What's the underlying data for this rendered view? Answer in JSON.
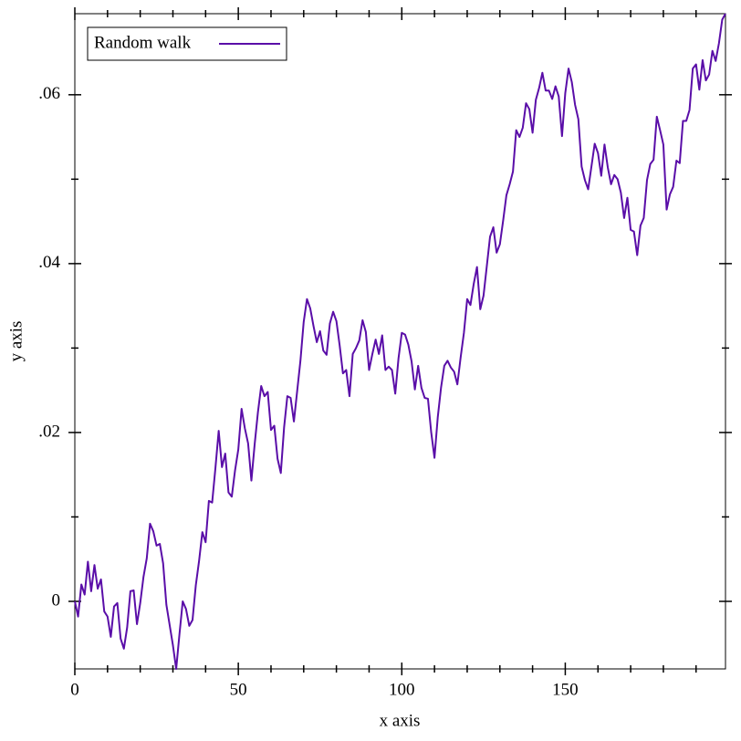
{
  "chart_data": {
    "type": "line",
    "xlabel": "x axis",
    "ylabel": "y axis",
    "legend": "top-left",
    "xlim": [
      0,
      199
    ],
    "ylim": [
      -0.008,
      0.0696
    ],
    "xticks": [
      0,
      50,
      100,
      150
    ],
    "xminorticks": [
      10,
      20,
      30,
      40,
      60,
      70,
      80,
      90,
      110,
      120,
      130,
      140,
      160,
      170,
      180,
      190
    ],
    "yticks": [
      0,
      {
        "value": 0.02,
        "label": ".02"
      },
      {
        "value": 0.04,
        "label": ".04"
      },
      {
        "value": 0.06,
        "label": ".06"
      }
    ],
    "yminorticks": [
      0.01,
      0.03,
      0.05
    ],
    "x": [
      0,
      1,
      2,
      3,
      4,
      5,
      6,
      7,
      8,
      9,
      10,
      11,
      12,
      13,
      14,
      15,
      16,
      17,
      18,
      19,
      20,
      21,
      22,
      23,
      24,
      25,
      26,
      27,
      28,
      29,
      30,
      31,
      32,
      33,
      34,
      35,
      36,
      37,
      38,
      39,
      40,
      41,
      42,
      43,
      44,
      45,
      46,
      47,
      48,
      49,
      50,
      51,
      52,
      53,
      54,
      55,
      56,
      57,
      58,
      59,
      60,
      61,
      62,
      63,
      64,
      65,
      66,
      67,
      68,
      69,
      70,
      71,
      72,
      73,
      74,
      75,
      76,
      77,
      78,
      79,
      80,
      81,
      82,
      83,
      84,
      85,
      86,
      87,
      88,
      89,
      90,
      91,
      92,
      93,
      94,
      95,
      96,
      97,
      98,
      99,
      100,
      101,
      102,
      103,
      104,
      105,
      106,
      107,
      108,
      109,
      110,
      111,
      112,
      113,
      114,
      115,
      116,
      117,
      118,
      119,
      120,
      121,
      122,
      123,
      124,
      125,
      126,
      127,
      128,
      129,
      130,
      131,
      132,
      133,
      134,
      135,
      136,
      137,
      138,
      139,
      140,
      141,
      142,
      143,
      144,
      145,
      146,
      147,
      148,
      149,
      150,
      151,
      152,
      153,
      154,
      155,
      156,
      157,
      158,
      159,
      160,
      161,
      162,
      163,
      164,
      165,
      166,
      167,
      168,
      169,
      170,
      171,
      172,
      173,
      174,
      175,
      176,
      177,
      178,
      179,
      180,
      181,
      182,
      183,
      184,
      185,
      186,
      187,
      188,
      189,
      190,
      191,
      192,
      193,
      194,
      195,
      196,
      197,
      198,
      199
    ],
    "series": [
      {
        "name": "Random walk",
        "color": "#5a0ea8",
        "values": [
          0,
          -0.0018,
          0.002,
          0.0008,
          0.0047,
          0.0012,
          0.0043,
          0.0015,
          0.0026,
          -0.0012,
          -0.0018,
          -0.0042,
          -0.0006,
          -0.0002,
          -0.0044,
          -0.0056,
          -0.0031,
          0.0012,
          0.0013,
          -0.0027,
          -0.0002,
          0.0029,
          0.0051,
          0.0092,
          0.0083,
          0.0066,
          0.0068,
          0.0045,
          -0.0004,
          -0.0028,
          -0.0052,
          -0.008,
          -0.0039,
          0,
          -0.0009,
          -0.0029,
          -0.0022,
          0.0019,
          0.0048,
          0.0082,
          0.007,
          0.0119,
          0.0117,
          0.0158,
          0.0202,
          0.0159,
          0.0175,
          0.0129,
          0.0124,
          0.0155,
          0.018,
          0.0228,
          0.0205,
          0.0187,
          0.0143,
          0.0186,
          0.0224,
          0.0255,
          0.0243,
          0.0248,
          0.0203,
          0.0208,
          0.0169,
          0.0152,
          0.0206,
          0.0243,
          0.0241,
          0.0213,
          0.0249,
          0.0285,
          0.0331,
          0.0358,
          0.0347,
          0.0326,
          0.0307,
          0.032,
          0.0297,
          0.0292,
          0.0329,
          0.0343,
          0.0332,
          0.0303,
          0.027,
          0.0274,
          0.0243,
          0.0293,
          0.03,
          0.0309,
          0.0333,
          0.0319,
          0.0274,
          0.0293,
          0.031,
          0.0293,
          0.0315,
          0.0274,
          0.0278,
          0.0274,
          0.0246,
          0.0288,
          0.0318,
          0.0316,
          0.0304,
          0.0284,
          0.0251,
          0.0279,
          0.0253,
          0.0241,
          0.024,
          0.02,
          0.017,
          0.0218,
          0.0253,
          0.0279,
          0.0285,
          0.0277,
          0.0272,
          0.0257,
          0.0289,
          0.0318,
          0.0358,
          0.0351,
          0.0376,
          0.0396,
          0.0346,
          0.0362,
          0.0397,
          0.0432,
          0.0443,
          0.0413,
          0.0423,
          0.0451,
          0.0481,
          0.0494,
          0.0509,
          0.0558,
          0.055,
          0.0561,
          0.059,
          0.0583,
          0.0555,
          0.0594,
          0.0608,
          0.0626,
          0.0605,
          0.0605,
          0.0595,
          0.061,
          0.0598,
          0.0551,
          0.0602,
          0.0631,
          0.0615,
          0.0588,
          0.0571,
          0.0515,
          0.0499,
          0.0488,
          0.0515,
          0.0542,
          0.0531,
          0.0504,
          0.0541,
          0.0514,
          0.0494,
          0.0505,
          0.05,
          0.0484,
          0.0454,
          0.0478,
          0.044,
          0.0438,
          0.041,
          0.0445,
          0.0454,
          0.0499,
          0.0518,
          0.0523,
          0.0574,
          0.0558,
          0.0541,
          0.0464,
          0.0482,
          0.0491,
          0.0522,
          0.0519,
          0.0569,
          0.0569,
          0.0582,
          0.0631,
          0.0636,
          0.0606,
          0.0641,
          0.0617,
          0.0624,
          0.0652,
          0.064,
          0.0661,
          0.0689,
          0.0696
        ]
      }
    ]
  }
}
